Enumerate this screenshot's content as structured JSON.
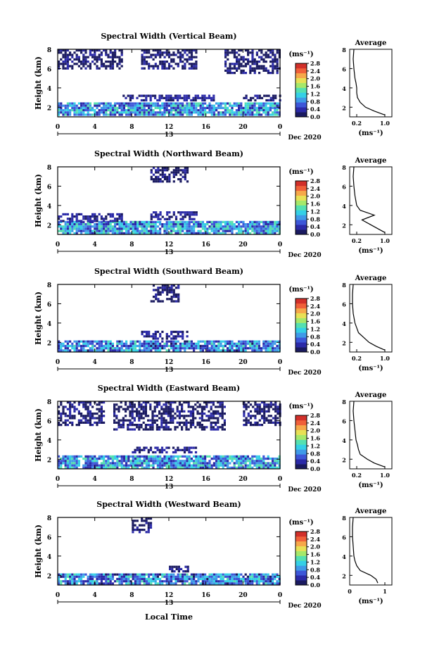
{
  "figure": {
    "x_axis_label": "Local Time",
    "colorbar_unit": "(ms⁻¹)",
    "colorbar_ticks": [
      "0.0",
      "0.4",
      "0.8",
      "1.2",
      "1.6",
      "2.0",
      "2.4",
      "2.8"
    ],
    "colorbar_colors": [
      "#1a1a60",
      "#2b2aa8",
      "#3d57d8",
      "#3f9ae8",
      "#35d0e6",
      "#55e0b0",
      "#a6e86a",
      "#e8e055",
      "#f6a84a",
      "#f0603a",
      "#d2302a"
    ],
    "x_ticks": [
      "0",
      "4",
      "8",
      "12",
      "16",
      "20",
      "0"
    ],
    "day_label": "13",
    "date_label": "Dec 2020",
    "y_ticks_main": [
      "2",
      "4",
      "6",
      "8"
    ],
    "y_label_main": "Height (km)",
    "avg_title": "Average",
    "avg_y_ticks": [
      "2",
      "4",
      "6",
      "8"
    ],
    "avg_x_unit": "(ms⁻¹)"
  },
  "chart_data": [
    {
      "type": "heatmap",
      "title": "Spectral Width (Vertical Beam)",
      "ylabel": "Height (km)",
      "xlim": [
        0,
        24
      ],
      "ylim": [
        1,
        8
      ],
      "clim": [
        0,
        2.8
      ],
      "regions": [
        {
          "x": [
            0,
            24
          ],
          "y": [
            1.1,
            2.5
          ],
          "value": 0.9
        },
        {
          "x": [
            7,
            17
          ],
          "y": [
            2.6,
            3.3
          ],
          "value": 0.3
        },
        {
          "x": [
            0,
            7
          ],
          "y": [
            6.0,
            8.0
          ],
          "value": 0.2
        },
        {
          "x": [
            9,
            15
          ],
          "y": [
            6.0,
            8.0
          ],
          "value": 0.2
        },
        {
          "x": [
            18,
            24
          ],
          "y": [
            5.5,
            8.0
          ],
          "value": 0.2
        },
        {
          "x": [
            20,
            24
          ],
          "y": [
            2.6,
            3.3
          ],
          "value": 0.2
        }
      ],
      "average": {
        "xlim": [
          0,
          1.2
        ],
        "xticks": [
          "0.2",
          "1.0"
        ],
        "heights": [
          1.2,
          1.6,
          2.0,
          2.5,
          3.0,
          3.5,
          4.0,
          4.5,
          5.0,
          6.0,
          7.0,
          8.0
        ],
        "values": [
          1.0,
          0.7,
          0.45,
          0.3,
          0.22,
          0.2,
          0.2,
          0.18,
          0.15,
          0.12,
          0.1,
          0.12
        ]
      }
    },
    {
      "type": "heatmap",
      "title": "Spectral Width (Northward Beam)",
      "ylabel": "Height (km)",
      "xlim": [
        0,
        24
      ],
      "ylim": [
        1,
        8
      ],
      "clim": [
        0,
        2.8
      ],
      "regions": [
        {
          "x": [
            0,
            24
          ],
          "y": [
            1.1,
            2.4
          ],
          "value": 0.9
        },
        {
          "x": [
            0,
            7
          ],
          "y": [
            2.4,
            3.2
          ],
          "value": 0.3
        },
        {
          "x": [
            10,
            15
          ],
          "y": [
            2.6,
            3.4
          ],
          "value": 0.3
        },
        {
          "x": [
            10,
            14
          ],
          "y": [
            6.5,
            8.0
          ],
          "value": 0.2
        }
      ],
      "average": {
        "xlim": [
          0,
          1.2
        ],
        "xticks": [
          "0.2",
          "1.0"
        ],
        "heights": [
          1.2,
          1.6,
          2.0,
          2.5,
          3.0,
          3.5,
          4.0,
          5.0,
          6.0,
          7.0,
          8.0
        ],
        "values": [
          1.0,
          0.8,
          0.6,
          0.35,
          0.7,
          0.3,
          0.2,
          0.15,
          0.12,
          0.1,
          0.12
        ]
      }
    },
    {
      "type": "heatmap",
      "title": "Spectral Width (Southward Beam)",
      "ylabel": "Height (km)",
      "xlim": [
        0,
        24
      ],
      "ylim": [
        1,
        8
      ],
      "clim": [
        0,
        2.8
      ],
      "regions": [
        {
          "x": [
            0,
            24
          ],
          "y": [
            1.1,
            2.2
          ],
          "value": 0.8
        },
        {
          "x": [
            9,
            14
          ],
          "y": [
            2.4,
            3.2
          ],
          "value": 0.3
        },
        {
          "x": [
            10,
            13
          ],
          "y": [
            6.2,
            8.0
          ],
          "value": 0.2
        }
      ],
      "average": {
        "xlim": [
          0,
          1.2
        ],
        "xticks": [
          "0.2",
          "1.0"
        ],
        "heights": [
          1.2,
          1.6,
          2.0,
          2.5,
          3.0,
          3.5,
          4.0,
          5.0,
          6.0,
          7.0,
          8.0
        ],
        "values": [
          1.0,
          0.75,
          0.55,
          0.4,
          0.25,
          0.2,
          0.15,
          0.1,
          0.08,
          0.08,
          0.1
        ]
      }
    },
    {
      "type": "heatmap",
      "title": "Spectral Width (Eastward Beam)",
      "ylabel": "Height (km)",
      "xlim": [
        0,
        24
      ],
      "ylim": [
        1,
        8
      ],
      "clim": [
        0,
        2.8
      ],
      "regions": [
        {
          "x": [
            0,
            24
          ],
          "y": [
            1.1,
            2.4
          ],
          "value": 0.9
        },
        {
          "x": [
            8,
            15
          ],
          "y": [
            2.6,
            3.3
          ],
          "value": 0.3
        },
        {
          "x": [
            0,
            5
          ],
          "y": [
            5.5,
            8.0
          ],
          "value": 0.2
        },
        {
          "x": [
            6,
            18
          ],
          "y": [
            5.0,
            8.0
          ],
          "value": 0.2
        },
        {
          "x": [
            20,
            24
          ],
          "y": [
            5.5,
            8.0
          ],
          "value": 0.2
        }
      ],
      "average": {
        "xlim": [
          0,
          1.2
        ],
        "xticks": [
          "0.2",
          "1.0"
        ],
        "heights": [
          1.2,
          1.6,
          2.0,
          2.5,
          3.0,
          3.5,
          4.0,
          5.0,
          6.0,
          7.0,
          8.0
        ],
        "values": [
          1.0,
          0.7,
          0.5,
          0.3,
          0.25,
          0.22,
          0.18,
          0.15,
          0.12,
          0.1,
          0.12
        ]
      }
    },
    {
      "type": "heatmap",
      "title": "Spectral Width (Westward Beam)",
      "ylabel": "Height (km)",
      "xlim": [
        0,
        24
      ],
      "ylim": [
        1,
        8
      ],
      "clim": [
        0,
        2.8
      ],
      "regions": [
        {
          "x": [
            0,
            24
          ],
          "y": [
            1.1,
            2.2
          ],
          "value": 0.8
        },
        {
          "x": [
            12,
            14
          ],
          "y": [
            2.4,
            3.0
          ],
          "value": 0.3
        },
        {
          "x": [
            8,
            10
          ],
          "y": [
            6.5,
            8.0
          ],
          "value": 0.2
        }
      ],
      "average": {
        "xlim": [
          0,
          1.2
        ],
        "xticks": [
          "0",
          "1"
        ],
        "heights": [
          1.2,
          1.6,
          2.0,
          2.5,
          3.0,
          3.5,
          4.0,
          5.0,
          6.0,
          7.0,
          8.0
        ],
        "values": [
          0.8,
          0.75,
          0.6,
          0.3,
          0.2,
          0.15,
          0.12,
          0.1,
          0.08,
          0.08,
          0.1
        ]
      }
    }
  ]
}
